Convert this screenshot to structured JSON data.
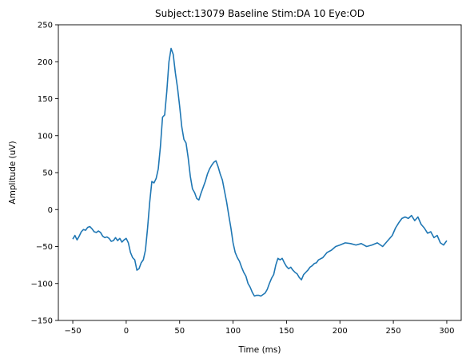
{
  "chart_data": {
    "type": "line",
    "title": "Subject:13079 Baseline Stim:DA 10 Eye:OD",
    "xlabel": "Time (ms)",
    "ylabel": "Amplitude (uV)",
    "xlim": [
      -63.5,
      313.5
    ],
    "ylim": [
      -150,
      250
    ],
    "xticks": [
      -50,
      0,
      50,
      100,
      150,
      200,
      250,
      300
    ],
    "yticks": [
      -150,
      -100,
      -50,
      0,
      50,
      100,
      150,
      200,
      250
    ],
    "grid": false,
    "legend": "none",
    "series": [
      {
        "color": "#1f77b4",
        "x": [
          -50,
          -48,
          -46,
          -44,
          -42,
          -40,
          -38,
          -36,
          -34,
          -32,
          -30,
          -28,
          -26,
          -24,
          -22,
          -20,
          -18,
          -16,
          -14,
          -12,
          -10,
          -8,
          -6,
          -4,
          -2,
          0,
          2,
          4,
          6,
          8,
          10,
          12,
          14,
          16,
          18,
          20,
          22,
          24,
          26,
          28,
          30,
          32,
          34,
          36,
          38,
          40,
          42,
          44,
          46,
          48,
          50,
          52,
          54,
          56,
          58,
          60,
          62,
          64,
          66,
          68,
          70,
          72,
          74,
          76,
          78,
          80,
          82,
          84,
          86,
          88,
          90,
          92,
          94,
          96,
          98,
          100,
          102,
          104,
          106,
          108,
          110,
          112,
          114,
          116,
          118,
          120,
          122,
          124,
          126,
          128,
          130,
          132,
          134,
          136,
          138,
          140,
          142,
          144,
          146,
          148,
          150,
          152,
          154,
          156,
          158,
          160,
          162,
          164,
          166,
          168,
          170,
          172,
          174,
          176,
          178,
          180,
          184,
          188,
          192,
          196,
          200,
          205,
          210,
          215,
          220,
          225,
          230,
          235,
          240,
          243,
          246,
          249,
          252,
          255,
          258,
          261,
          264,
          267,
          270,
          273,
          276,
          279,
          282,
          285,
          288,
          291,
          294,
          297,
          300
        ],
        "values": [
          -40,
          -35,
          -41,
          -36,
          -30,
          -27,
          -28,
          -24,
          -23,
          -26,
          -30,
          -31,
          -29,
          -31,
          -36,
          -38,
          -37,
          -39,
          -43,
          -42,
          -38,
          -42,
          -39,
          -44,
          -41,
          -39,
          -45,
          -58,
          -65,
          -68,
          -82,
          -80,
          -72,
          -68,
          -55,
          -25,
          10,
          38,
          36,
          42,
          55,
          85,
          125,
          128,
          160,
          200,
          218,
          210,
          185,
          165,
          140,
          112,
          95,
          90,
          70,
          45,
          28,
          23,
          15,
          13,
          22,
          30,
          38,
          48,
          55,
          60,
          64,
          66,
          58,
          48,
          40,
          25,
          10,
          -8,
          -25,
          -45,
          -58,
          -65,
          -70,
          -78,
          -85,
          -90,
          -100,
          -105,
          -112,
          -117,
          -116,
          -116,
          -117,
          -115,
          -113,
          -108,
          -100,
          -93,
          -88,
          -75,
          -66,
          -68,
          -66,
          -72,
          -77,
          -80,
          -78,
          -82,
          -85,
          -87,
          -92,
          -95,
          -88,
          -85,
          -82,
          -78,
          -76,
          -73,
          -72,
          -68,
          -65,
          -58,
          -55,
          -50,
          -48,
          -45,
          -46,
          -48,
          -46,
          -50,
          -48,
          -45,
          -50,
          -45,
          -40,
          -35,
          -25,
          -18,
          -12,
          -10,
          -12,
          -8,
          -15,
          -10,
          -20,
          -25,
          -32,
          -30,
          -38,
          -35,
          -45,
          -48,
          -42
        ]
      }
    ]
  }
}
